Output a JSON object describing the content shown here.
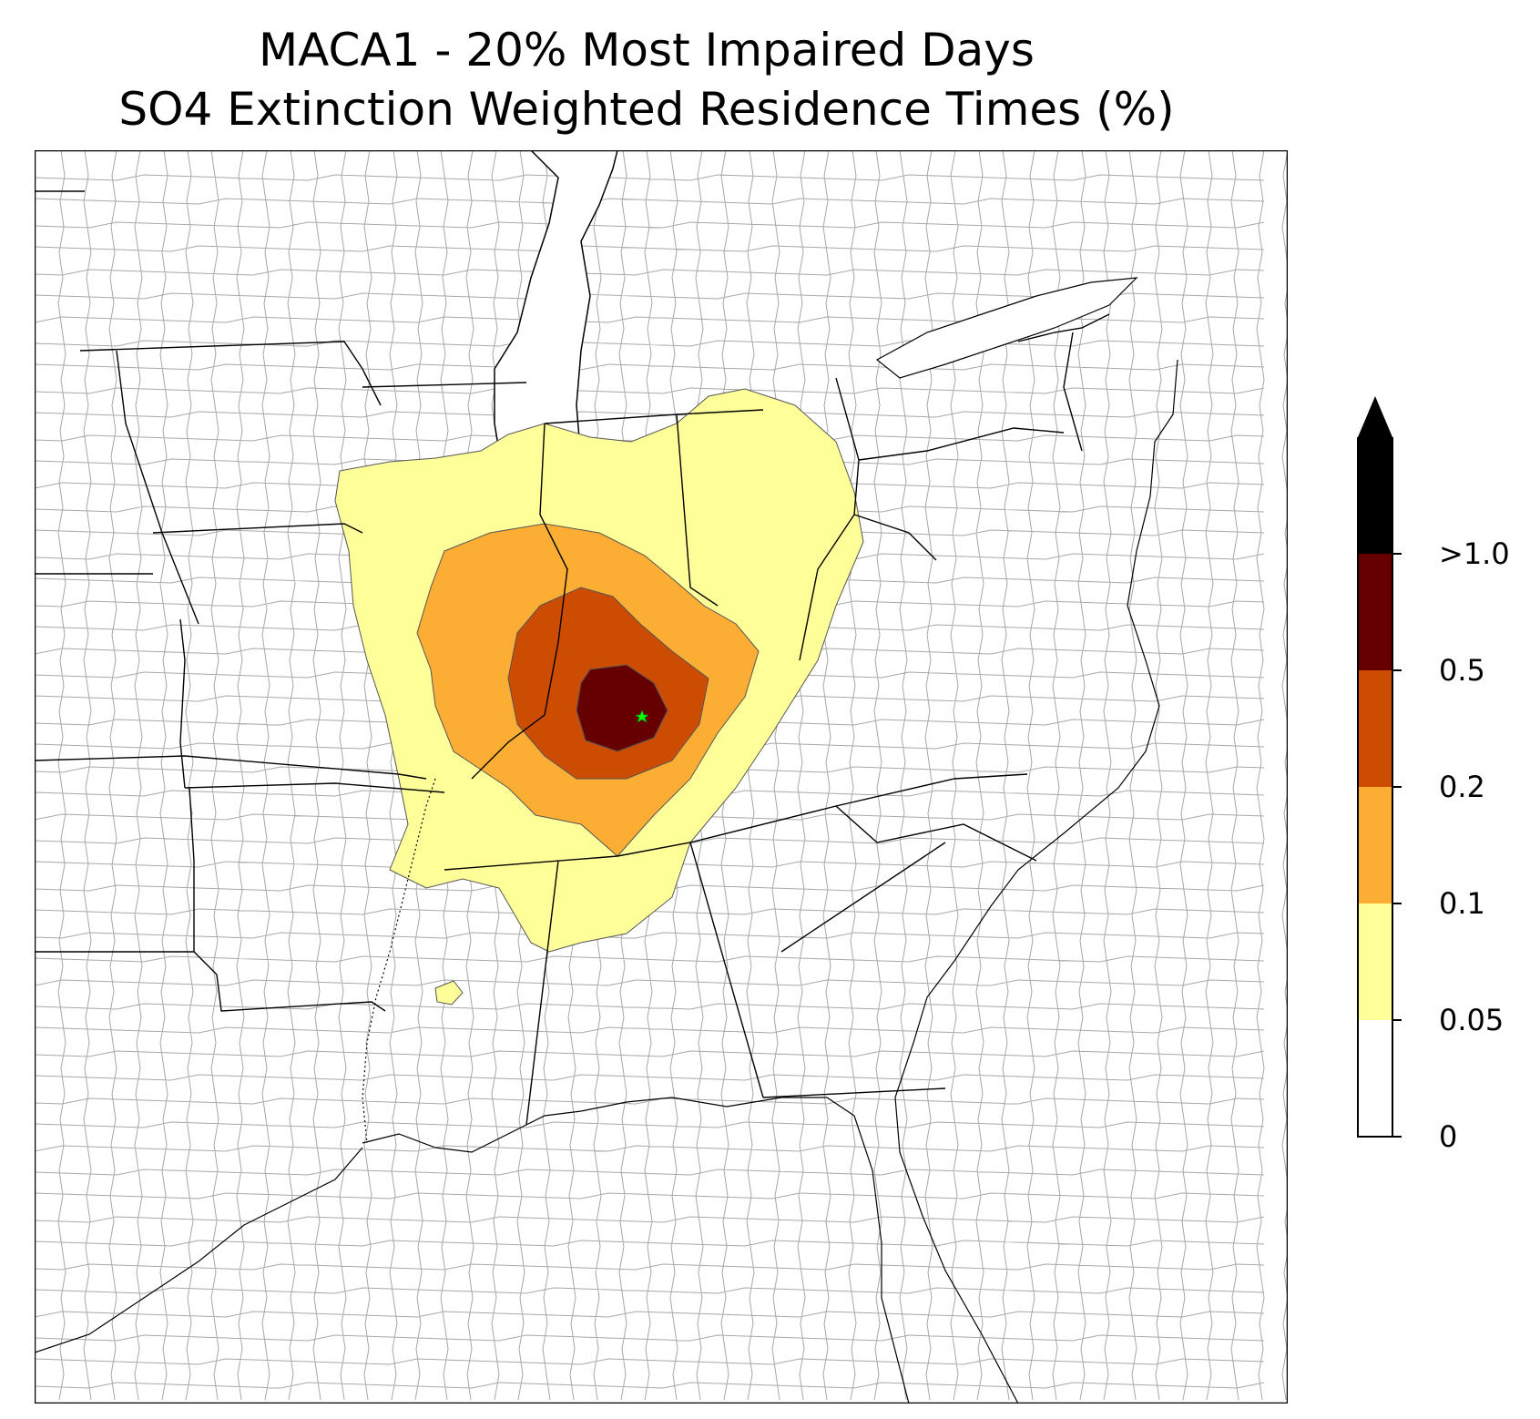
{
  "title_line1": "MACA1 - 20% Most Impaired Days",
  "title_line2": "SO4 Extinction Weighted Residence Times (%)",
  "site_marker_icon": "star-icon",
  "site_marker_color": "#00ff00",
  "colorbar": {
    "extend": "max",
    "labels": [
      "0",
      "0.05",
      "0.1",
      "0.2",
      "0.5",
      ">1.0"
    ],
    "bins": [
      {
        "from": "0",
        "to": "0.05",
        "color": "#ffffff"
      },
      {
        "from": "0.05",
        "to": "0.1",
        "color": "#ffff99"
      },
      {
        "from": "0.1",
        "to": "0.2",
        "color": "#fbae33"
      },
      {
        "from": "0.2",
        "to": "0.5",
        "color": "#cc4c02"
      },
      {
        "from": "0.5",
        "to": "1.0",
        "color": "#660000"
      },
      {
        "from": "1.0",
        "to": "",
        "color": "#000000"
      }
    ]
  }
}
